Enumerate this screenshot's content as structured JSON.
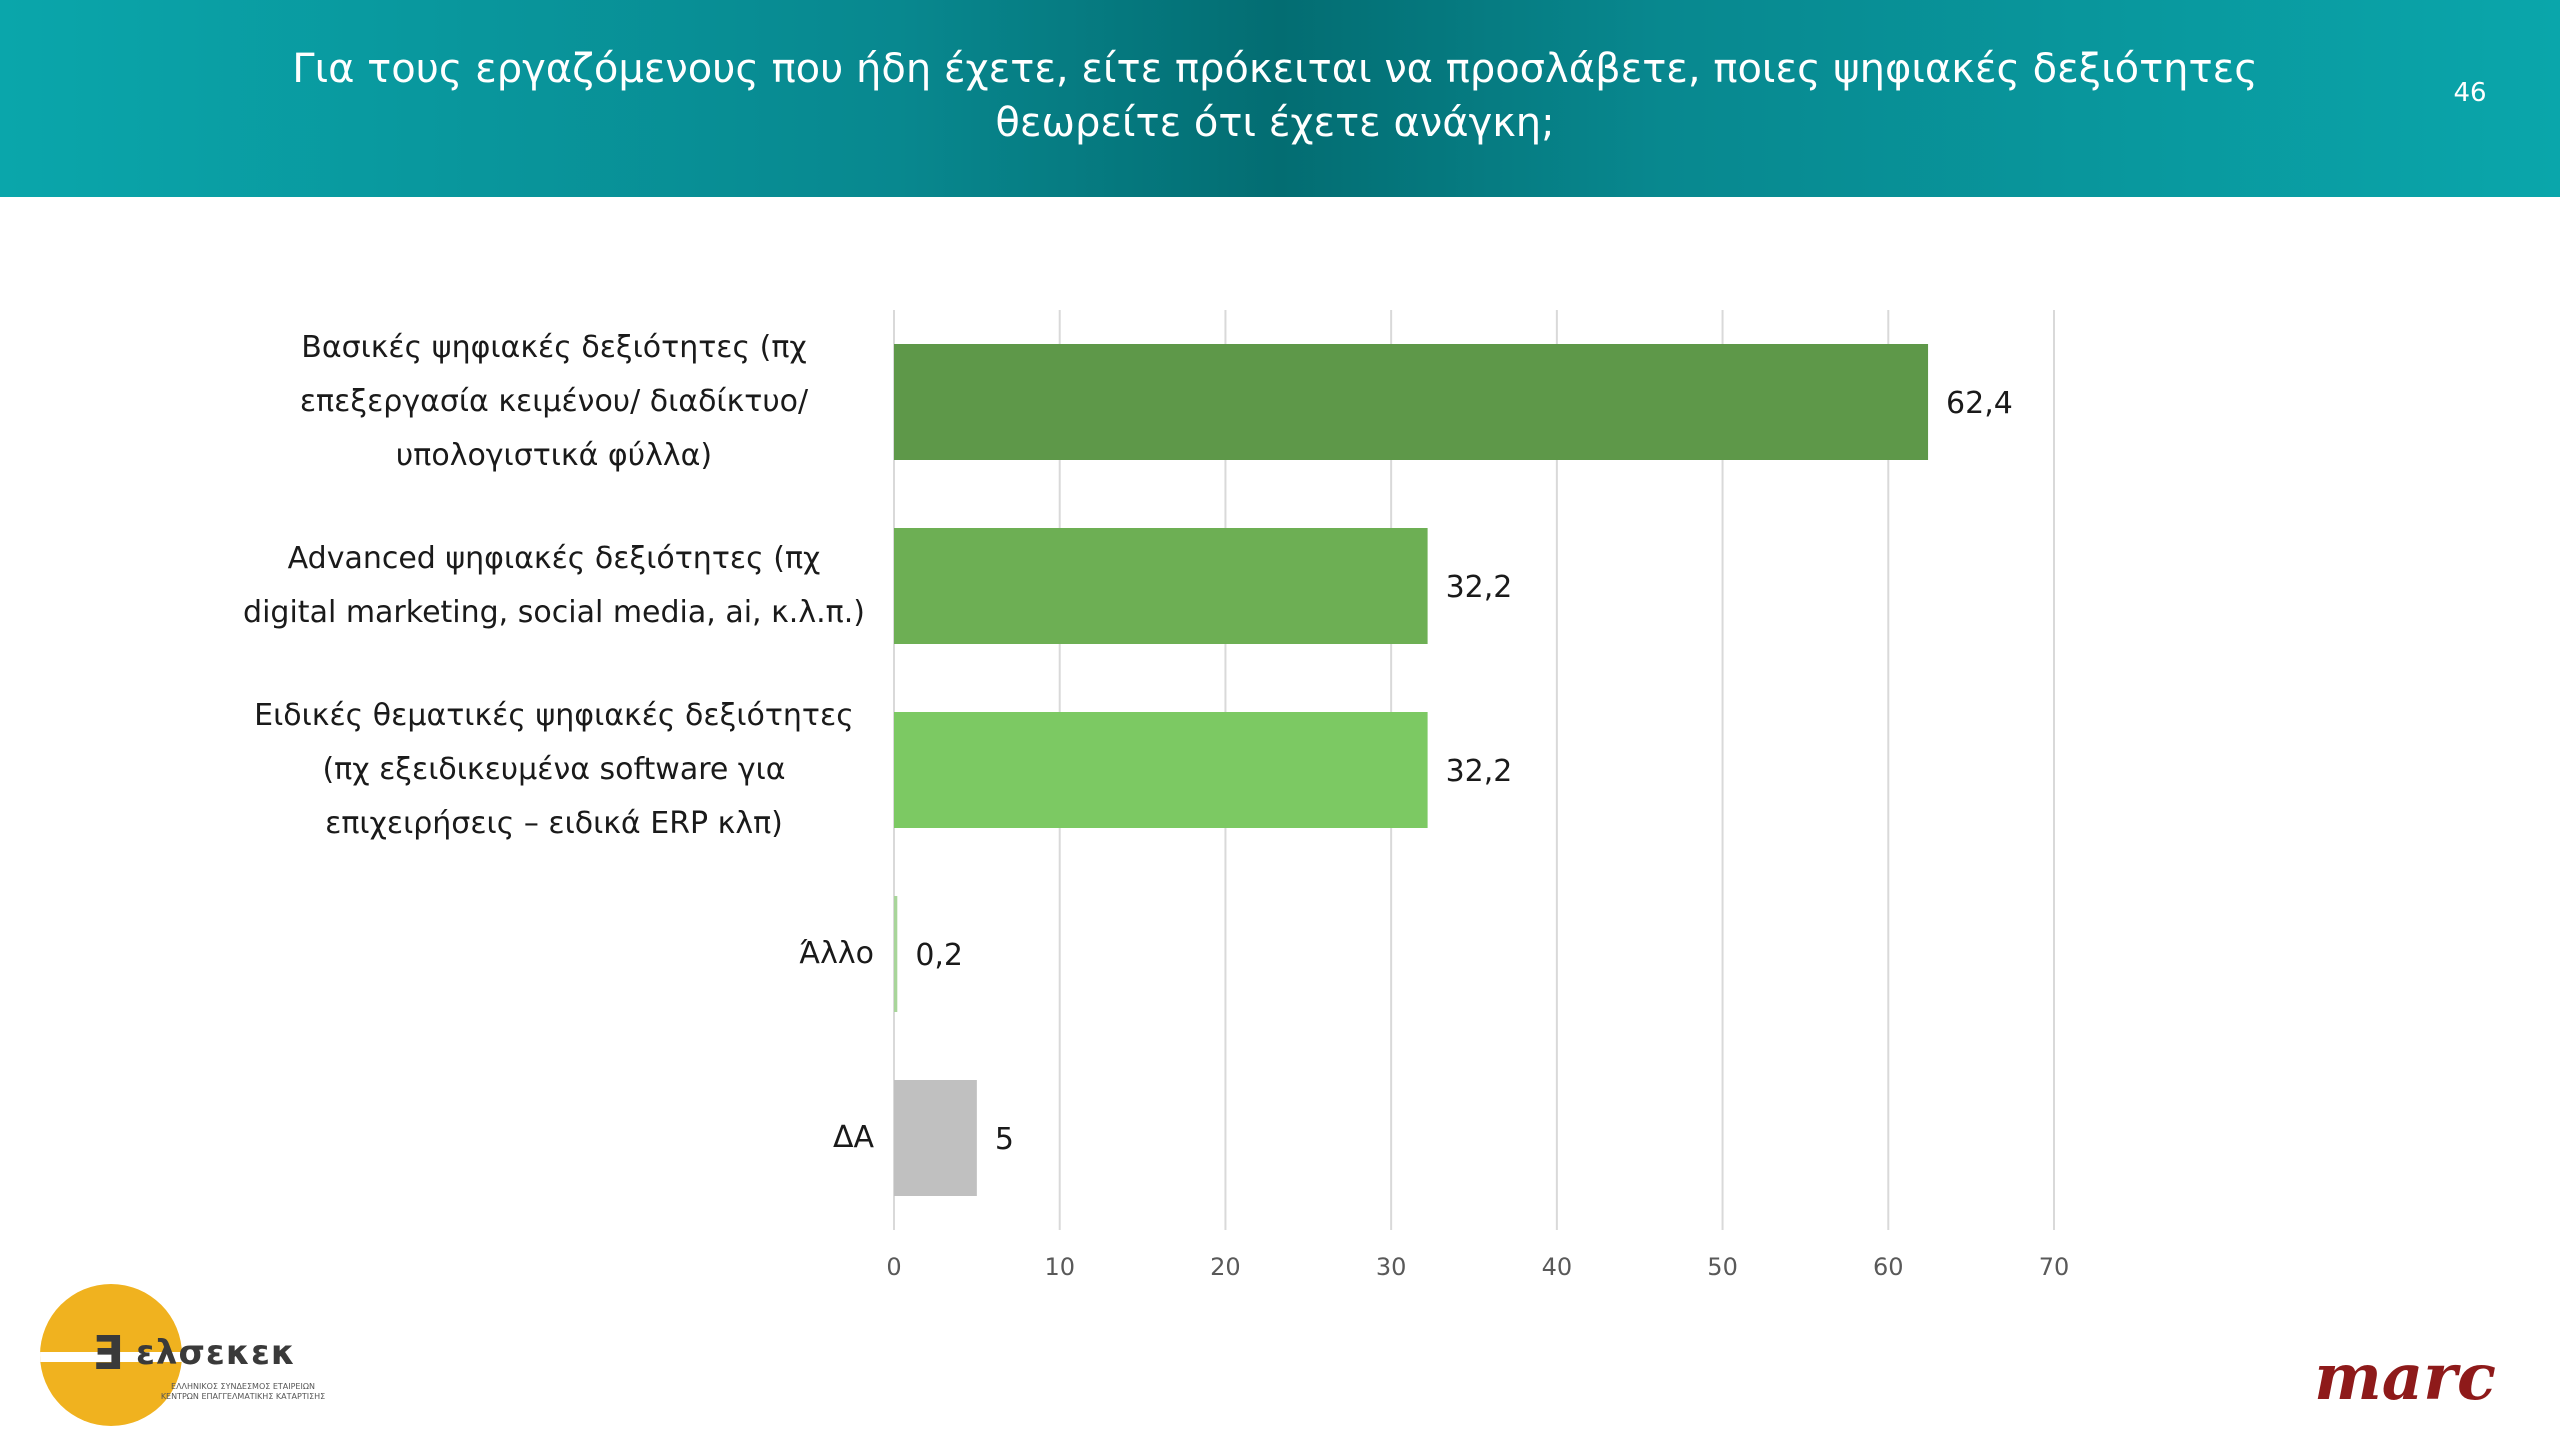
{
  "header": {
    "title_line1": "Για τους εργαζόμενους που ήδη έχετε, είτε πρόκειται να προσλάβετε, ποιες ψηφιακές δεξιότητες",
    "title_line2": "θεωρείτε ότι έχετε ανάγκη;",
    "page_number": "46",
    "gradient_colors": [
      "#0aa6ab",
      "#036d72"
    ]
  },
  "chart_data": {
    "type": "bar",
    "orientation": "horizontal",
    "categories": [
      [
        "Βασικές ψηφιακές δεξιότητες (πχ",
        "επεξεργασία κειμένου/ διαδίκτυο/",
        "υπολογιστικά φύλλα)"
      ],
      [
        "Advanced ψηφιακές δεξιότητες (πχ",
        "digital marketing, social media, ai, κ.λ.π.)"
      ],
      [
        "Ειδικές θεματικές ψηφιακές δεξιότητες",
        "(πχ εξειδικευμένα software για",
        "επιχειρήσεις – ειδικά ERP κλπ)"
      ],
      [
        "Άλλο"
      ],
      [
        "ΔΑ"
      ]
    ],
    "values": [
      62.4,
      32.2,
      32.2,
      0.2,
      5
    ],
    "data_labels": [
      "62,4",
      "32,2",
      "32,2",
      "0,2",
      "5"
    ],
    "bar_colors": [
      "#5e9849",
      "#6daf54",
      "#7cc963",
      "#a8d59a",
      "#c0c0c0"
    ],
    "xlim": [
      0,
      70
    ],
    "xticks": [
      0,
      10,
      20,
      30,
      40,
      50,
      60,
      70
    ],
    "grid": "vertical",
    "title": "",
    "xlabel": "",
    "ylabel": ""
  },
  "logos": {
    "left_name": "ελσεκεκ",
    "left_glyph": "Ǝ",
    "left_sub1": "ΕΛΛΗΝΙΚΟΣ ΣΥΝΔΕΣΜΟΣ ΕΤΑΙΡΕΙΩΝ",
    "left_sub2": "ΚΕΝΤΡΩΝ ΕΠΑΓΓΕΛΜΑΤΙΚΗΣ ΚΑΤΑΡΤΙΣΗΣ",
    "right_name": "marc"
  }
}
